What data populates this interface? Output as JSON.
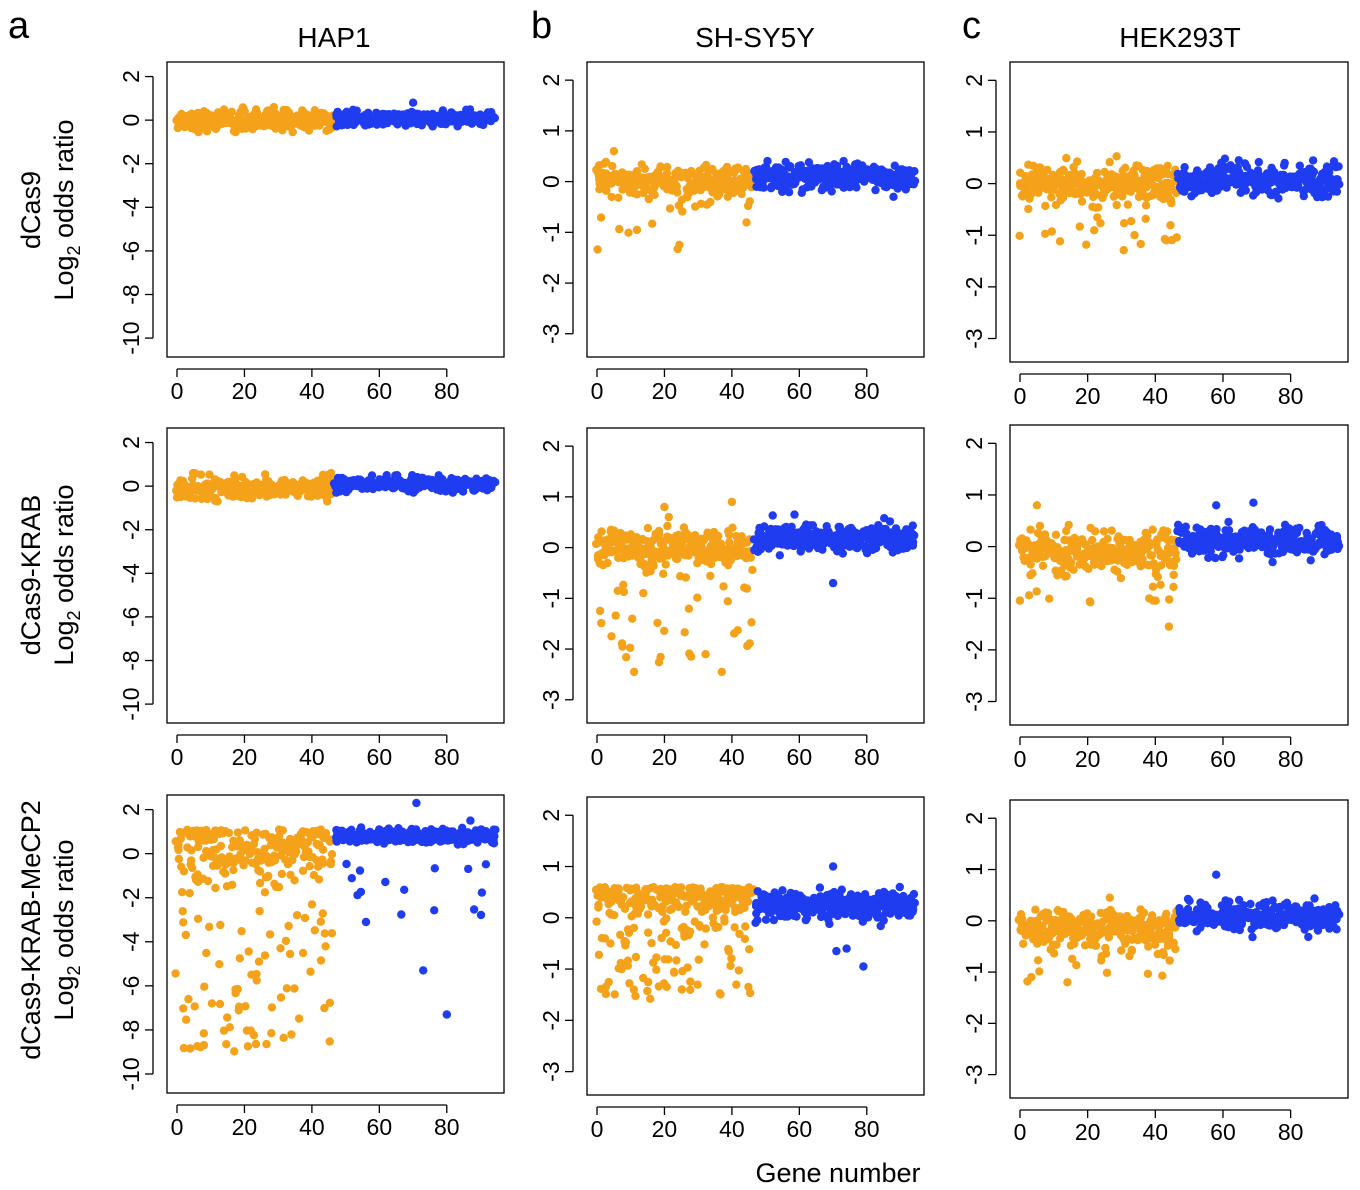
{
  "panel_letters": [
    "a",
    "b",
    "c"
  ],
  "column_titles": [
    "HAP1",
    "SH-SY5Y",
    "HEK293T"
  ],
  "row_labels": [
    {
      "line1": "dCas9",
      "line2_prefix": "Log",
      "line2_sub": "2",
      "line2_suffix": " odds ratio"
    },
    {
      "line1": "dCas9-KRAB",
      "line2_prefix": "Log",
      "line2_sub": "2",
      "line2_suffix": " odds ratio"
    },
    {
      "line1": "dCas9-KRAB-MeCP2",
      "line2_prefix": "Log",
      "line2_sub": "2",
      "line2_suffix": " odds ratio"
    }
  ],
  "x_axis_label": "Gene number",
  "colors": {
    "targeting": "#F5A21B",
    "control": "#1F3CF0"
  },
  "chart_data": [
    {
      "type": "scatter",
      "cell_line": "HAP1",
      "fusion": "dCas9",
      "xlim": [
        0,
        94
      ],
      "ylim": [
        -10.5,
        2.3
      ],
      "x_ticks": [
        0,
        20,
        40,
        60,
        80
      ],
      "y_ticks": [
        2,
        0,
        -2,
        -4,
        -6,
        -8,
        -10
      ],
      "series": [
        {
          "x_range": [
            0,
            46
          ],
          "y_center": 0.0,
          "y_spread": 0.5,
          "y_min": -0.6,
          "y_max": 0.6,
          "outliers": []
        },
        {
          "x_range": [
            47,
            94
          ],
          "y_center": 0.05,
          "y_spread": 0.35,
          "y_min": -0.4,
          "y_max": 0.5,
          "outliers": [
            [
              70,
              0.8
            ]
          ]
        }
      ]
    },
    {
      "type": "scatter",
      "cell_line": "SH-SY5Y",
      "fusion": "dCas9",
      "xlim": [
        0,
        94
      ],
      "ylim": [
        -3.3,
        2.2
      ],
      "x_ticks": [
        0,
        20,
        40,
        60,
        80
      ],
      "y_ticks": [
        2,
        1,
        0,
        -1,
        -2,
        -3
      ],
      "series": [
        {
          "x_range": [
            0,
            46
          ],
          "y_center": 0.0,
          "y_spread": 0.35,
          "y_min": -1.35,
          "y_max": 0.6,
          "tail_fraction": 0.25,
          "tail_min": -1.35,
          "outliers": [
            [
              5,
              0.6
            ]
          ]
        },
        {
          "x_range": [
            47,
            94
          ],
          "y_center": 0.1,
          "y_spread": 0.28,
          "y_min": -0.3,
          "y_max": 0.45,
          "outliers": []
        }
      ]
    },
    {
      "type": "scatter",
      "cell_line": "HEK293T",
      "fusion": "dCas9",
      "xlim": [
        0,
        94
      ],
      "ylim": [
        -3.3,
        2.2
      ],
      "x_ticks": [
        0,
        20,
        40,
        60,
        80
      ],
      "y_ticks": [
        2,
        1,
        0,
        -1,
        -2,
        -3
      ],
      "series": [
        {
          "x_range": [
            0,
            46
          ],
          "y_center": 0.0,
          "y_spread": 0.4,
          "y_min": -1.45,
          "y_max": 0.6,
          "tail_fraction": 0.2,
          "tail_min": -1.45,
          "outliers": []
        },
        {
          "x_range": [
            47,
            94
          ],
          "y_center": 0.05,
          "y_spread": 0.35,
          "y_min": -0.35,
          "y_max": 0.65,
          "outliers": []
        }
      ]
    },
    {
      "type": "scatter",
      "cell_line": "HAP1",
      "fusion": "dCas9-KRAB",
      "xlim": [
        0,
        94
      ],
      "ylim": [
        -10.5,
        2.3
      ],
      "x_ticks": [
        0,
        20,
        40,
        60,
        80
      ],
      "y_ticks": [
        2,
        0,
        -2,
        -4,
        -6,
        -8,
        -10
      ],
      "series": [
        {
          "x_range": [
            0,
            46
          ],
          "y_center": -0.1,
          "y_spread": 0.55,
          "y_min": -0.7,
          "y_max": 0.6,
          "outliers": []
        },
        {
          "x_range": [
            47,
            94
          ],
          "y_center": 0.1,
          "y_spread": 0.35,
          "y_min": -0.3,
          "y_max": 0.5,
          "outliers": []
        }
      ]
    },
    {
      "type": "scatter",
      "cell_line": "SH-SY5Y",
      "fusion": "dCas9-KRAB",
      "xlim": [
        0,
        94
      ],
      "ylim": [
        -3.3,
        2.2
      ],
      "x_ticks": [
        0,
        20,
        40,
        60,
        80
      ],
      "y_ticks": [
        2,
        1,
        0,
        -1,
        -2,
        -3
      ],
      "series": [
        {
          "x_range": [
            0,
            46
          ],
          "y_center": 0.0,
          "y_spread": 0.4,
          "y_min": -2.5,
          "y_max": 0.9,
          "tail_fraction": 0.45,
          "tail_min": -2.3,
          "outliers": [
            [
              11,
              -2.45
            ],
            [
              37,
              -2.45
            ],
            [
              20,
              0.8
            ],
            [
              40,
              0.9
            ]
          ]
        },
        {
          "x_range": [
            47,
            94
          ],
          "y_center": 0.2,
          "y_spread": 0.3,
          "y_min": -0.3,
          "y_max": 0.65,
          "outliers": [
            [
              70,
              -0.7
            ]
          ]
        }
      ]
    },
    {
      "type": "scatter",
      "cell_line": "HEK293T",
      "fusion": "dCas9-KRAB",
      "xlim": [
        0,
        94
      ],
      "ylim": [
        -3.3,
        2.2
      ],
      "x_ticks": [
        0,
        20,
        40,
        60,
        80
      ],
      "y_ticks": [
        2,
        1,
        0,
        -1,
        -2,
        -3
      ],
      "series": [
        {
          "x_range": [
            0,
            46
          ],
          "y_center": -0.05,
          "y_spread": 0.4,
          "y_min": -1.55,
          "y_max": 0.8,
          "tail_fraction": 0.2,
          "tail_min": -1.1,
          "outliers": [
            [
              44,
              -1.55
            ],
            [
              5,
              0.8
            ]
          ]
        },
        {
          "x_range": [
            47,
            94
          ],
          "y_center": 0.1,
          "y_spread": 0.3,
          "y_min": -0.3,
          "y_max": 0.85,
          "outliers": [
            [
              69,
              0.85
            ],
            [
              58,
              0.8
            ]
          ]
        }
      ]
    },
    {
      "type": "scatter",
      "cell_line": "HAP1",
      "fusion": "dCas9-KRAB-MeCP2",
      "xlim": [
        0,
        94
      ],
      "ylim": [
        -10.5,
        2.3
      ],
      "x_ticks": [
        0,
        20,
        40,
        60,
        80
      ],
      "y_ticks": [
        2,
        0,
        -2,
        -4,
        -6,
        -8,
        -10
      ],
      "series": [
        {
          "x_range": [
            0,
            46
          ],
          "y_center": -2.5,
          "y_spread": 3.5,
          "y_min": -9.0,
          "y_max": 1.1,
          "mode": "wide",
          "outliers": []
        },
        {
          "x_range": [
            47,
            94
          ],
          "y_center": 0.8,
          "y_spread": 0.35,
          "y_min": -0.5,
          "y_max": 1.3,
          "sparse_low": 16,
          "outliers": [
            [
              71,
              2.3
            ],
            [
              73,
              -5.3
            ],
            [
              80,
              -7.3
            ],
            [
              87,
              1.5
            ]
          ]
        }
      ]
    },
    {
      "type": "scatter",
      "cell_line": "SH-SY5Y",
      "fusion": "dCas9-KRAB-MeCP2",
      "xlim": [
        0,
        94
      ],
      "ylim": [
        -3.3,
        2.2
      ],
      "x_ticks": [
        0,
        20,
        40,
        60,
        80
      ],
      "y_ticks": [
        2,
        1,
        0,
        -1,
        -2,
        -3
      ],
      "series": [
        {
          "x_range": [
            0,
            46
          ],
          "y_center": -0.45,
          "y_spread": 0.9,
          "y_min": -1.6,
          "y_max": 0.6,
          "mode": "wide",
          "outliers": []
        },
        {
          "x_range": [
            47,
            94
          ],
          "y_center": 0.25,
          "y_spread": 0.3,
          "y_min": -0.3,
          "y_max": 0.6,
          "outliers": [
            [
              70,
              1.0
            ],
            [
              71,
              -0.65
            ],
            [
              74,
              -0.6
            ],
            [
              79,
              -0.95
            ]
          ]
        }
      ]
    },
    {
      "type": "scatter",
      "cell_line": "HEK293T",
      "fusion": "dCas9-KRAB-MeCP2",
      "xlim": [
        0,
        94
      ],
      "ylim": [
        -3.3,
        2.2
      ],
      "x_ticks": [
        0,
        20,
        40,
        60,
        80
      ],
      "y_ticks": [
        2,
        1,
        0,
        -1,
        -2,
        -3
      ],
      "series": [
        {
          "x_range": [
            0,
            46
          ],
          "y_center": -0.15,
          "y_spread": 0.4,
          "y_min": -1.2,
          "y_max": 0.6,
          "tail_fraction": 0.1,
          "tail_min": -1.2,
          "outliers": [
            [
              14,
              -1.2
            ]
          ]
        },
        {
          "x_range": [
            47,
            94
          ],
          "y_center": 0.1,
          "y_spread": 0.3,
          "y_min": -0.55,
          "y_max": 0.9,
          "outliers": [
            [
              58,
              0.9
            ]
          ]
        }
      ]
    }
  ]
}
